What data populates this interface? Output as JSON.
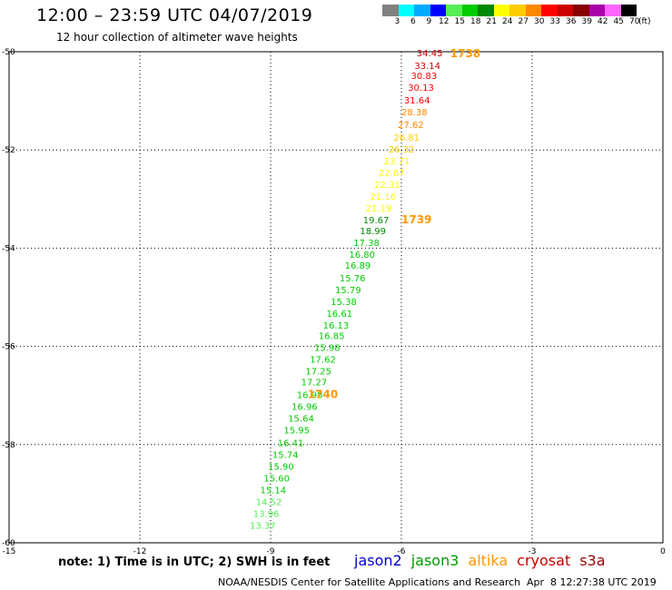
{
  "title": "12:00 – 23:59 UTC 04/07/2019",
  "subtitle": "12 hour collection of altimeter wave heights",
  "legend": {
    "bins": [
      {
        "label": "3",
        "color": "#808080"
      },
      {
        "label": "6",
        "color": "#00ffff"
      },
      {
        "label": "9",
        "color": "#00aaff"
      },
      {
        "label": "12",
        "color": "#0000ff"
      },
      {
        "label": "15",
        "color": "#55ee55"
      },
      {
        "label": "18",
        "color": "#00cc00"
      },
      {
        "label": "21",
        "color": "#008800"
      },
      {
        "label": "24",
        "color": "#ffff00"
      },
      {
        "label": "27",
        "color": "#ffcc00"
      },
      {
        "label": "30",
        "color": "#ff8800"
      },
      {
        "label": "33",
        "color": "#ff0000"
      },
      {
        "label": "36",
        "color": "#cc0000"
      },
      {
        "label": "39",
        "color": "#880000"
      },
      {
        "label": "42",
        "color": "#aa00aa"
      },
      {
        "label": "45",
        "color": "#ff66ff"
      },
      {
        "label": "70",
        "color": "#000000"
      }
    ],
    "unit": "(ft)"
  },
  "note": "note: 1) Time is in UTC; 2) SWH is in feet",
  "satellites": [
    {
      "name": "jason2",
      "color": "#0000cc"
    },
    {
      "name": "jason3",
      "color": "#009900"
    },
    {
      "name": "altika",
      "color": "#ff9900"
    },
    {
      "name": "cryosat",
      "color": "#cc0000"
    },
    {
      "name": "s3a",
      "color": "#990000"
    }
  ],
  "footer": "NOAA/NESDIS Center for Satellite Applications and Research",
  "footer_time": "Apr  8 12:27:38 UTC 2019",
  "chart_data": {
    "type": "scatter",
    "title": "12:00 – 23:59 UTC 04/07/2019",
    "subtitle": "12 hour collection of altimeter wave heights",
    "xlim": [
      -15,
      0
    ],
    "ylim": [
      -60,
      -50
    ],
    "x_ticks": [
      -15,
      -12,
      -9,
      -6,
      -3,
      0
    ],
    "y_ticks": [
      -50,
      -52,
      -54,
      -56,
      -58,
      -60
    ],
    "grid": true,
    "points": [
      {
        "x": -5.65,
        "y": -50.02,
        "v": "34.45"
      },
      {
        "x": -5.7,
        "y": -50.28,
        "v": "33.14"
      },
      {
        "x": -5.78,
        "y": -50.48,
        "v": "30.83"
      },
      {
        "x": -5.85,
        "y": -50.72,
        "v": "30.13"
      },
      {
        "x": -5.94,
        "y": -50.98,
        "v": "31.64"
      },
      {
        "x": -6.0,
        "y": -51.22,
        "v": "28.38"
      },
      {
        "x": -6.08,
        "y": -51.48,
        "v": "27.62"
      },
      {
        "x": -6.18,
        "y": -51.74,
        "v": "26.81"
      },
      {
        "x": -6.3,
        "y": -51.98,
        "v": "26.32"
      },
      {
        "x": -6.4,
        "y": -52.22,
        "v": "23.71"
      },
      {
        "x": -6.52,
        "y": -52.46,
        "v": "22.67"
      },
      {
        "x": -6.62,
        "y": -52.7,
        "v": "22.31"
      },
      {
        "x": -6.72,
        "y": -52.94,
        "v": "21.16"
      },
      {
        "x": -6.82,
        "y": -53.18,
        "v": "21.19"
      },
      {
        "x": -6.88,
        "y": -53.42,
        "v": "19.67"
      },
      {
        "x": -6.95,
        "y": -53.64,
        "v": "18.99"
      },
      {
        "x": -7.1,
        "y": -53.88,
        "v": "17.38"
      },
      {
        "x": -7.2,
        "y": -54.12,
        "v": "16.80"
      },
      {
        "x": -7.3,
        "y": -54.34,
        "v": "16.89"
      },
      {
        "x": -7.42,
        "y": -54.6,
        "v": "15.76"
      },
      {
        "x": -7.52,
        "y": -54.84,
        "v": "15.79"
      },
      {
        "x": -7.62,
        "y": -55.08,
        "v": "15.38"
      },
      {
        "x": -7.72,
        "y": -55.32,
        "v": "16.61"
      },
      {
        "x": -7.8,
        "y": -55.56,
        "v": "16.13"
      },
      {
        "x": -7.9,
        "y": -55.78,
        "v": "16.85"
      },
      {
        "x": -8.0,
        "y": -56.02,
        "v": "15.98"
      },
      {
        "x": -8.1,
        "y": -56.26,
        "v": "17.62"
      },
      {
        "x": -8.2,
        "y": -56.5,
        "v": "17.25"
      },
      {
        "x": -8.3,
        "y": -56.72,
        "v": "17.27"
      },
      {
        "x": -8.4,
        "y": -56.98,
        "v": "16.98"
      },
      {
        "x": -8.52,
        "y": -57.22,
        "v": "16.96"
      },
      {
        "x": -8.6,
        "y": -57.46,
        "v": "15.64"
      },
      {
        "x": -8.7,
        "y": -57.7,
        "v": "15.95"
      },
      {
        "x": -8.84,
        "y": -57.96,
        "v": "16.41"
      },
      {
        "x": -8.96,
        "y": -58.2,
        "v": "15.74"
      },
      {
        "x": -9.06,
        "y": -58.44,
        "v": "15.90"
      },
      {
        "x": -9.16,
        "y": -58.68,
        "v": "15.60"
      },
      {
        "x": -9.24,
        "y": -58.92,
        "v": "15.14"
      },
      {
        "x": -9.34,
        "y": -59.16,
        "v": "14.52"
      },
      {
        "x": -9.4,
        "y": -59.4,
        "v": "13.96"
      },
      {
        "x": -9.48,
        "y": -59.64,
        "v": "13.37"
      }
    ],
    "annotations": [
      {
        "x": -4.88,
        "y": -50.02,
        "text": "1738",
        "color": "#ff9900"
      },
      {
        "x": -6.0,
        "y": -53.4,
        "text": "1739",
        "color": "#ff9900"
      },
      {
        "x": -8.15,
        "y": -56.96,
        "text": "1740",
        "color": "#ff9900"
      }
    ]
  }
}
